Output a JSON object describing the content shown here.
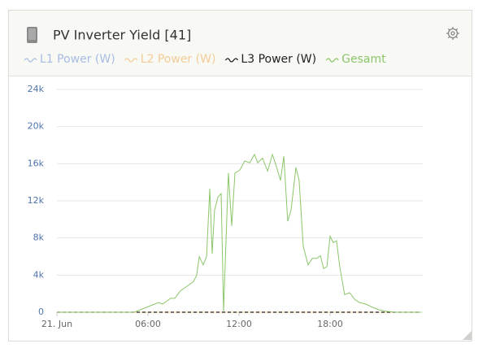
{
  "chart_data": {
    "type": "line",
    "title": "PV Inverter Yield [41]",
    "x": [
      0,
      5.09,
      5.63,
      6.16,
      6.7,
      6.96,
      7.5,
      7.77,
      8.14,
      8.57,
      9.0,
      9.21,
      9.38,
      9.64,
      9.86,
      10.07,
      10.23,
      10.39,
      10.61,
      10.82,
      10.98,
      11.3,
      11.52,
      11.73,
      12.05,
      12.38,
      12.7,
      13.02,
      13.23,
      13.55,
      13.88,
      14.2,
      14.52,
      14.73,
      14.95,
      15.21,
      15.43,
      15.75,
      15.96,
      16.23,
      16.55,
      16.82,
      17.14,
      17.36,
      17.57,
      17.79,
      18.0,
      18.21,
      18.43,
      18.64,
      18.96,
      19.29,
      19.61,
      19.93,
      20.36,
      20.79,
      21.21,
      21.75,
      22.29,
      24
    ],
    "series": [
      {
        "name": "L1 Power (W)",
        "color": "#a8bde6",
        "dashed": false,
        "values": [
          0,
          0,
          0,
          0,
          0,
          0,
          0,
          0,
          0,
          0,
          0,
          0,
          0,
          0,
          0,
          0,
          0,
          0,
          0,
          0,
          0,
          0,
          0,
          0,
          0,
          0,
          0,
          0,
          0,
          0,
          0,
          0,
          0,
          0,
          0,
          0,
          0,
          0,
          0,
          0,
          0,
          0,
          0,
          0,
          0,
          0,
          0,
          0,
          0,
          0,
          0,
          0,
          0,
          0,
          0,
          0,
          0,
          0,
          0,
          0
        ]
      },
      {
        "name": "L2 Power (W)",
        "color": "#f3cc97",
        "dashed": false,
        "values": [
          0,
          0,
          0,
          0,
          0,
          0,
          0,
          0,
          0,
          0,
          0,
          0,
          0,
          0,
          0,
          0,
          0,
          0,
          0,
          0,
          0,
          0,
          0,
          0,
          0,
          0,
          0,
          0,
          0,
          0,
          0,
          0,
          0,
          0,
          0,
          0,
          0,
          0,
          0,
          0,
          0,
          0,
          0,
          0,
          0,
          0,
          0,
          0,
          0,
          0,
          0,
          0,
          0,
          0,
          0,
          0,
          0,
          0,
          0,
          0
        ]
      },
      {
        "name": "L3 Power (W)",
        "color": "#222222",
        "dashed": true,
        "values": [
          0,
          0,
          0,
          0,
          0,
          0,
          0,
          0,
          0,
          0,
          0,
          0,
          0,
          0,
          0,
          0,
          0,
          0,
          0,
          0,
          0,
          0,
          0,
          0,
          0,
          0,
          0,
          0,
          0,
          0,
          0,
          0,
          0,
          0,
          0,
          0,
          0,
          0,
          0,
          0,
          0,
          0,
          0,
          0,
          0,
          0,
          0,
          0,
          0,
          0,
          0,
          0,
          0,
          0,
          0,
          0,
          0,
          0,
          0,
          0
        ]
      },
      {
        "name": "Gesamt",
        "color": "#8cc66a",
        "dashed": false,
        "values": [
          0,
          0,
          350,
          700,
          1050,
          880,
          1500,
          1500,
          2300,
          2800,
          3300,
          4000,
          6000,
          5100,
          6000,
          13300,
          6300,
          11000,
          12400,
          12800,
          100,
          15000,
          9300,
          15000,
          15300,
          16300,
          16100,
          17000,
          16100,
          16600,
          15200,
          17000,
          15400,
          14200,
          16800,
          9800,
          11000,
          15600,
          14200,
          7100,
          5100,
          5800,
          5800,
          6100,
          4700,
          4900,
          8200,
          7500,
          7700,
          4900,
          1900,
          2100,
          1400,
          1050,
          880,
          530,
          260,
          90,
          0,
          0
        ]
      }
    ],
    "xlim": [
      0,
      24
    ],
    "xticks": [
      {
        "value": 0,
        "label": "21. Jun"
      },
      {
        "value": 6,
        "label": "06:00"
      },
      {
        "value": 12,
        "label": "12:00"
      },
      {
        "value": 18,
        "label": "18:00"
      }
    ],
    "ylim": [
      0,
      24000
    ],
    "yticks": [
      0,
      {
        "value": 4000,
        "label": "4k"
      },
      {
        "value": 8000,
        "label": "8k"
      },
      {
        "value": 12000,
        "label": "12k"
      },
      {
        "value": 16000,
        "label": "16k"
      },
      {
        "value": 20000,
        "label": "20k"
      },
      {
        "value": 24000,
        "label": "24k"
      }
    ],
    "grid": true
  }
}
